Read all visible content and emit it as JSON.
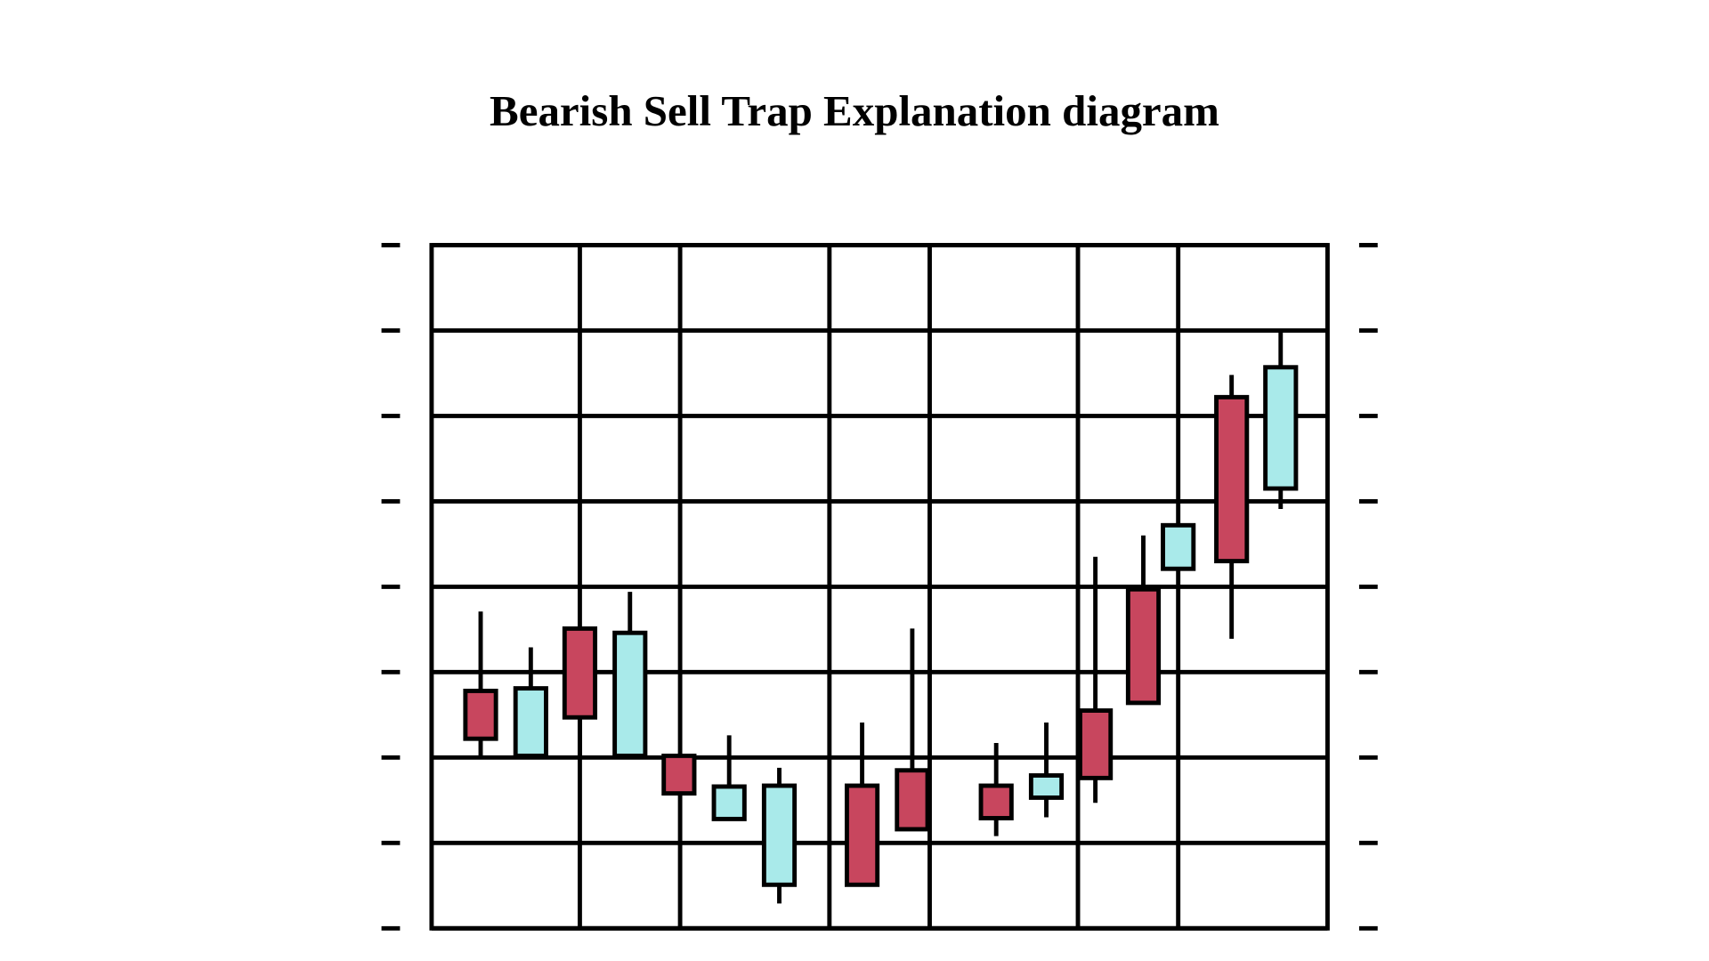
{
  "chart_data": {
    "type": "candlestick",
    "title": "Bearish Sell Trap Explanation diagram",
    "xlabel": "",
    "ylabel": "",
    "ylim": [
      0,
      8
    ],
    "grid": true,
    "colors": {
      "bearish": "#c8465e",
      "bullish": "#a9eaea",
      "outline": "#000000"
    },
    "candles": [
      {
        "open": 2.78,
        "close": 2.22,
        "high": 3.71,
        "low": 2.02
      },
      {
        "open": 2.02,
        "close": 2.81,
        "high": 3.29,
        "low": 2.02
      },
      {
        "open": 3.51,
        "close": 2.47,
        "high": 3.51,
        "low": 2.02
      },
      {
        "open": 2.02,
        "close": 3.46,
        "high": 3.94,
        "low": 2.02
      },
      {
        "open": 2.02,
        "close": 1.58,
        "high": 2.02,
        "low": 1.58
      },
      {
        "open": 1.28,
        "close": 1.66,
        "high": 2.26,
        "low": 1.28
      },
      {
        "open": 0.51,
        "close": 1.67,
        "high": 1.88,
        "low": 0.29
      },
      {
        "open": 1.67,
        "close": 0.51,
        "high": 2.41,
        "low": 0.51
      },
      {
        "open": 1.85,
        "close": 1.16,
        "high": 3.51,
        "low": 1.16
      },
      {
        "open": 1.67,
        "close": 1.29,
        "high": 2.17,
        "low": 1.08
      },
      {
        "open": 1.53,
        "close": 1.79,
        "high": 2.41,
        "low": 1.3
      },
      {
        "open": 2.55,
        "close": 1.76,
        "high": 4.35,
        "low": 1.47
      },
      {
        "open": 3.97,
        "close": 2.64,
        "high": 4.6,
        "low": 2.64
      },
      {
        "open": 4.21,
        "close": 4.72,
        "high": 4.72,
        "low": 4.21
      },
      {
        "open": 6.22,
        "close": 4.3,
        "high": 6.48,
        "low": 3.39
      },
      {
        "open": 5.15,
        "close": 6.57,
        "high": 6.98,
        "low": 4.91
      }
    ]
  }
}
